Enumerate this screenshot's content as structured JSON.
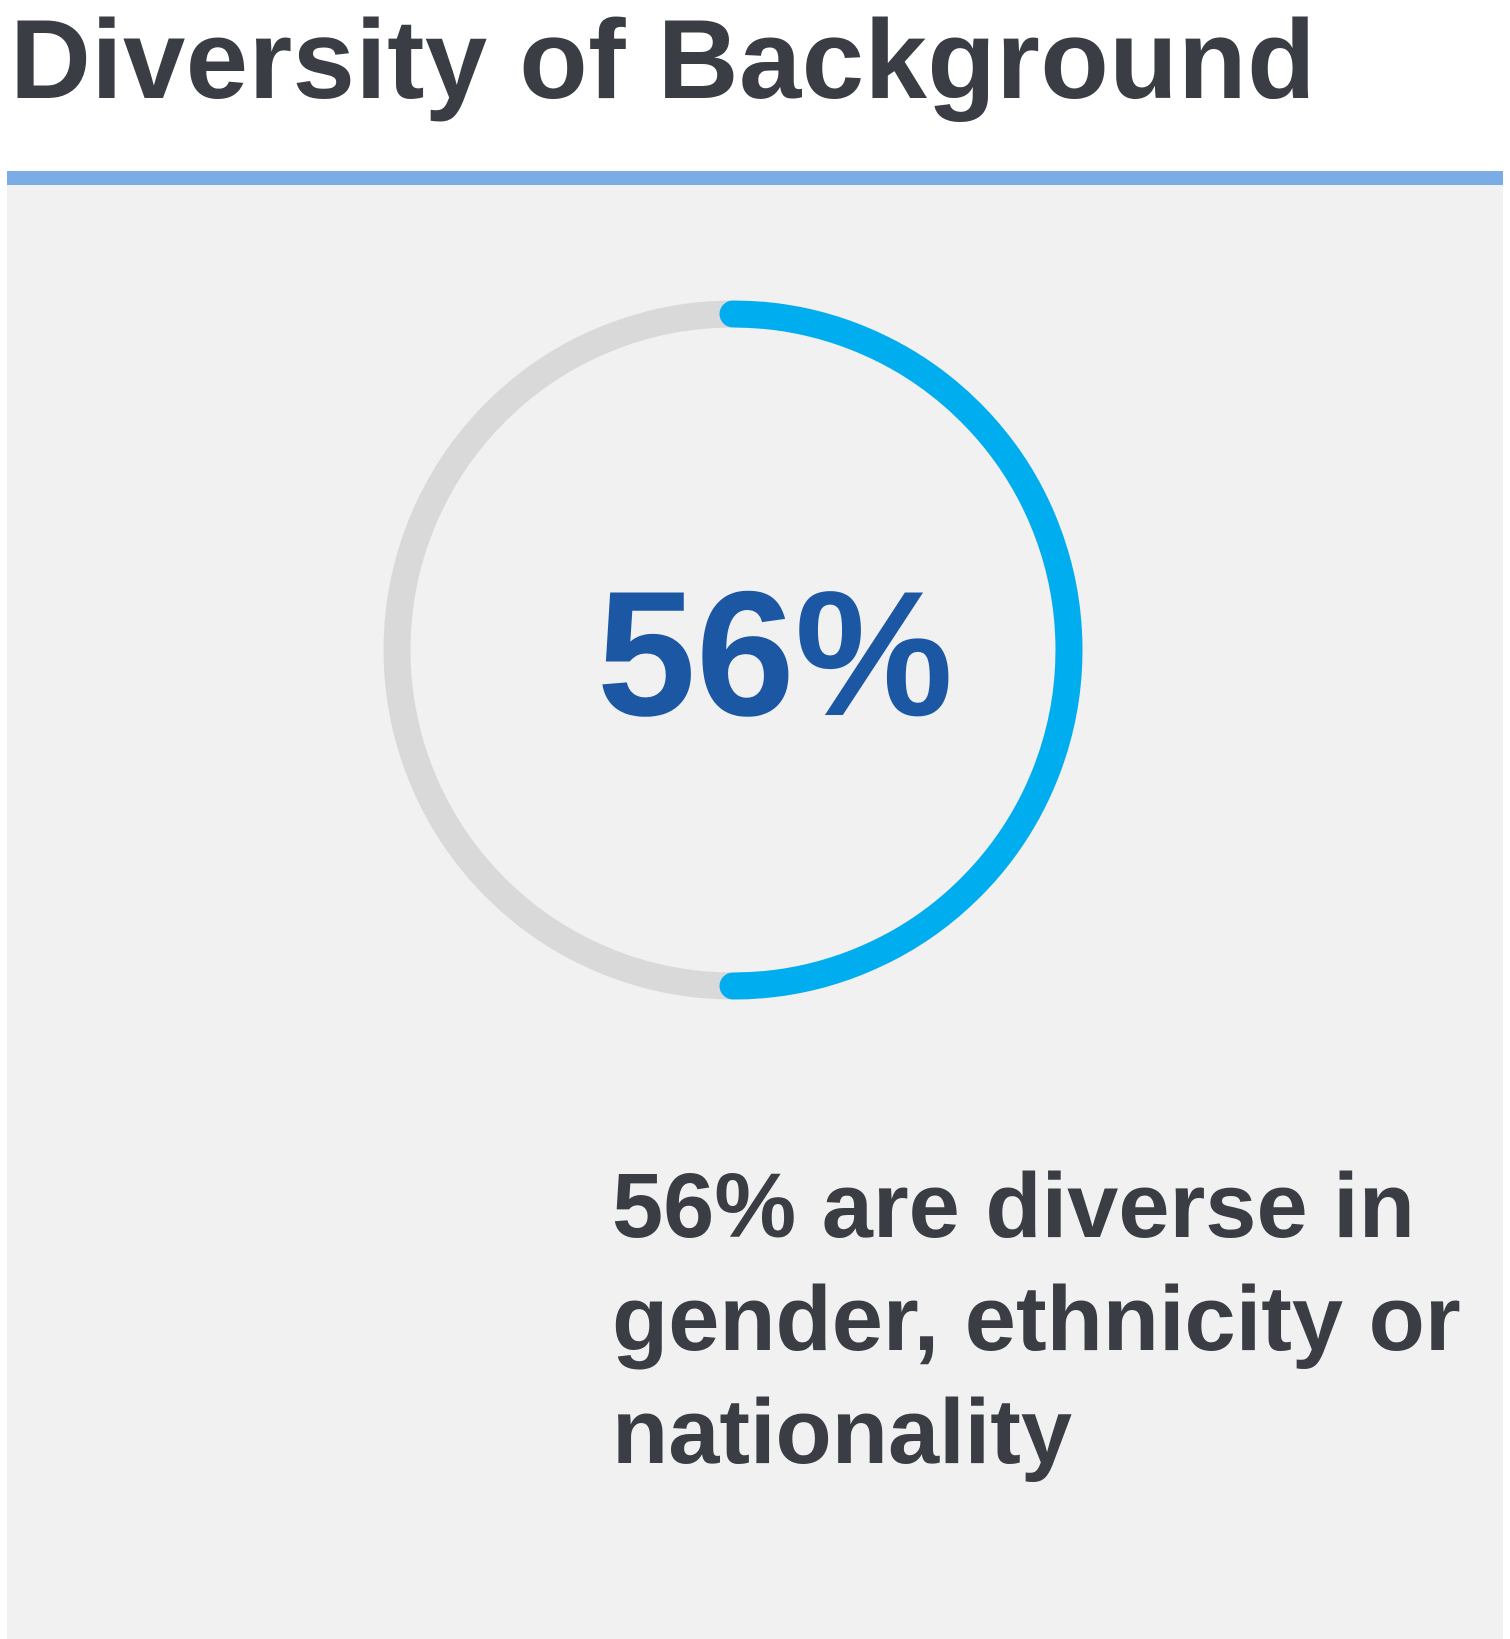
{
  "header": {
    "title": "Diversity of Background"
  },
  "chart_data": {
    "type": "pie",
    "subtype": "donut-progress",
    "value_percent": 56,
    "label": "56%",
    "colors": {
      "filled": "#00adef",
      "track": "#d9d9d9",
      "value_text": "#1c57a3"
    }
  },
  "description": {
    "text": "56% are diverse in gender, ethnicity or nationality"
  },
  "colors": {
    "title_rule": "#7aade6",
    "panel_background": "#f1f1f1",
    "text": "#3a3d44"
  }
}
